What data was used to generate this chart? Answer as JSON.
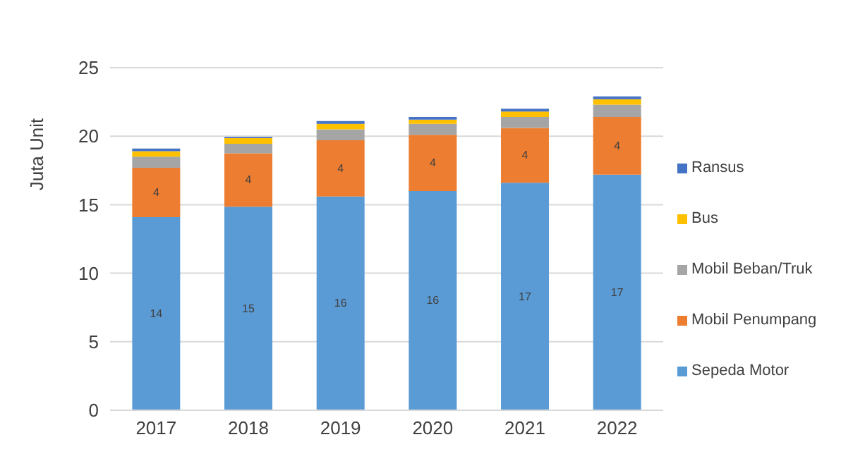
{
  "chart_data": {
    "type": "bar",
    "stacked": true,
    "ylabel": "Juta Unit",
    "categories": [
      "2017",
      "2018",
      "2019",
      "2020",
      "2021",
      "2022"
    ],
    "series": [
      {
        "name": "Sepeda Motor",
        "color": "#5b9bd5",
        "values": [
          14.1,
          14.85,
          15.6,
          16.0,
          16.6,
          17.2
        ],
        "value_labels": [
          "14",
          "15",
          "16",
          "16",
          "17",
          "17"
        ]
      },
      {
        "name": "Mobil Penumpang",
        "color": "#ed7d31",
        "values": [
          3.6,
          3.9,
          4.1,
          4.1,
          4.0,
          4.2
        ],
        "value_labels": [
          "4",
          "4",
          "4",
          "4",
          "4",
          "4"
        ]
      },
      {
        "name": "Mobil Beban/Truk",
        "color": "#a5a5a5",
        "values": [
          0.8,
          0.7,
          0.8,
          0.8,
          0.8,
          0.9
        ]
      },
      {
        "name": "Bus",
        "color": "#ffc000",
        "values": [
          0.4,
          0.4,
          0.4,
          0.3,
          0.4,
          0.4
        ]
      },
      {
        "name": "Ransus",
        "color": "#4472c4",
        "values": [
          0.2,
          0.1,
          0.2,
          0.2,
          0.2,
          0.2
        ]
      }
    ],
    "ylim": [
      0,
      25
    ],
    "yticks": [
      0,
      5,
      10,
      15,
      20,
      25
    ],
    "grid": "y",
    "legend": "right"
  }
}
